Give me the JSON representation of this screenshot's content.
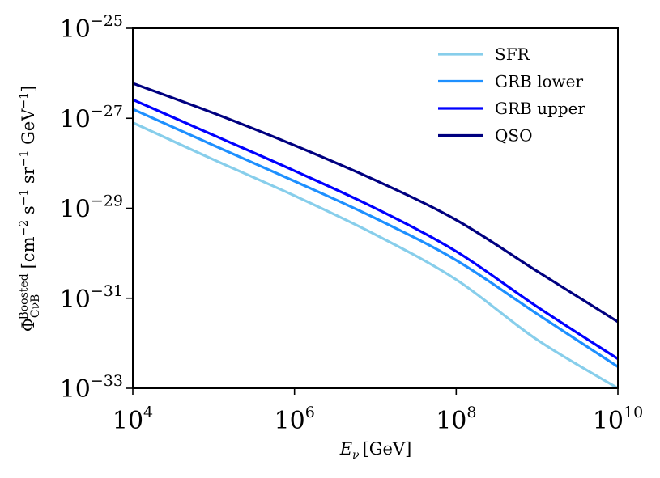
{
  "chart_data": {
    "type": "line",
    "x_scale": "log",
    "y_scale": "log",
    "xlim": [
      10000,
      10000000000
    ],
    "ylim": [
      1e-33,
      1e-25
    ],
    "xlabel": "E_ν [GeV]",
    "ylabel": "Φ_CνB^Boosted [cm⁻² s⁻¹ sr⁻¹ GeV⁻¹]",
    "x_ticks": [
      {
        "base": "10",
        "exp": "4"
      },
      {
        "base": "10",
        "exp": "6"
      },
      {
        "base": "10",
        "exp": "8"
      },
      {
        "base": "10",
        "exp": "10"
      }
    ],
    "y_ticks": [
      {
        "base": "10",
        "exp": "−25"
      },
      {
        "base": "10",
        "exp": "−27"
      },
      {
        "base": "10",
        "exp": "−29"
      },
      {
        "base": "10",
        "exp": "−31"
      },
      {
        "base": "10",
        "exp": "−33"
      }
    ],
    "legend_position": "top-right",
    "series": [
      {
        "name": "SFR",
        "color": "#87CEEB",
        "x": [
          10000.0,
          100000.0,
          1000000.0,
          10000000.0,
          100000000.0,
          1000000000.0,
          10000000000.0
        ],
        "y": [
          8e-28,
          1.2e-28,
          1.9e-29,
          2.6e-30,
          2.6e-31,
          1.2e-32,
          1e-33
        ]
      },
      {
        "name": "GRB lower",
        "color": "#1E90FF",
        "x": [
          10000.0,
          100000.0,
          1000000.0,
          10000000.0,
          100000000.0,
          1000000000.0,
          10000000000.0
        ],
        "y": [
          1.6e-27,
          2.5e-28,
          4e-29,
          6e-30,
          7e-31,
          4.5e-32,
          3e-33
        ]
      },
      {
        "name": "GRB upper",
        "color": "#0000FF",
        "x": [
          10000.0,
          100000.0,
          1000000.0,
          10000000.0,
          100000000.0,
          1000000000.0,
          10000000000.0
        ],
        "y": [
          2.6e-27,
          4.2e-28,
          6.8e-29,
          1e-29,
          1.1e-30,
          6.5e-32,
          4.5e-33
        ]
      },
      {
        "name": "QSO",
        "color": "#000080",
        "x": [
          10000.0,
          100000.0,
          1000000.0,
          10000000.0,
          100000000.0,
          1000000000.0,
          10000000000.0
        ],
        "y": [
          6e-27,
          1.3e-27,
          2.5e-28,
          4.2e-29,
          5.5e-30,
          4e-31,
          3e-32
        ]
      }
    ]
  }
}
